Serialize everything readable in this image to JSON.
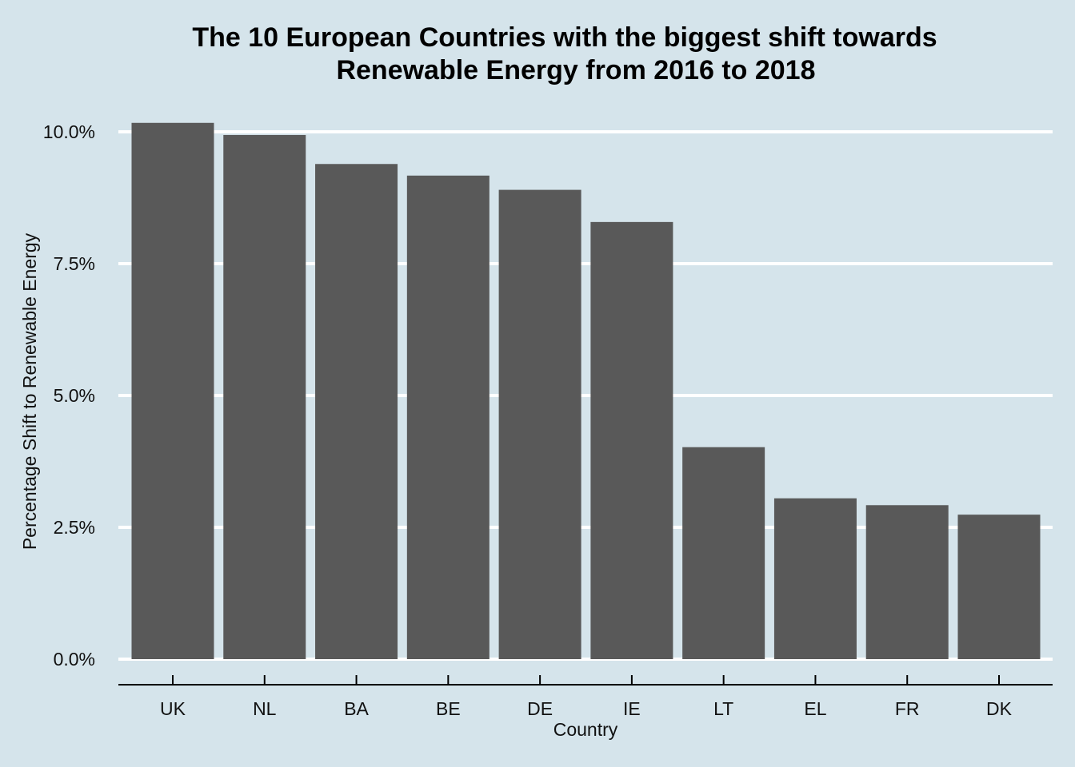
{
  "chart_data": {
    "type": "bar",
    "title_lines": [
      "The 10 European Countries with the biggest shift towards",
      "Renewable Energy from 2016 to 2018"
    ],
    "xlabel": "Country",
    "ylabel": "Percentage Shift to Renewable Energy",
    "categories": [
      "UK",
      "NL",
      "BA",
      "BE",
      "DE",
      "IE",
      "LT",
      "EL",
      "FR",
      "DK"
    ],
    "values": [
      10.17,
      9.94,
      9.39,
      9.17,
      8.9,
      8.29,
      4.02,
      3.05,
      2.92,
      2.74
    ],
    "value_unit": "%",
    "ylim": [
      0,
      10.5
    ],
    "yticks": [
      0,
      2.5,
      5,
      7.5,
      10
    ],
    "ytick_labels": [
      "0.0%",
      "2.5%",
      "5.0%",
      "7.5%",
      "10.0%"
    ],
    "grid": "horizontal",
    "legend": "none",
    "colors": {
      "background": "#d5e4eb",
      "bar": "#595959",
      "grid": "#ffffff",
      "axis": "#000000"
    }
  }
}
